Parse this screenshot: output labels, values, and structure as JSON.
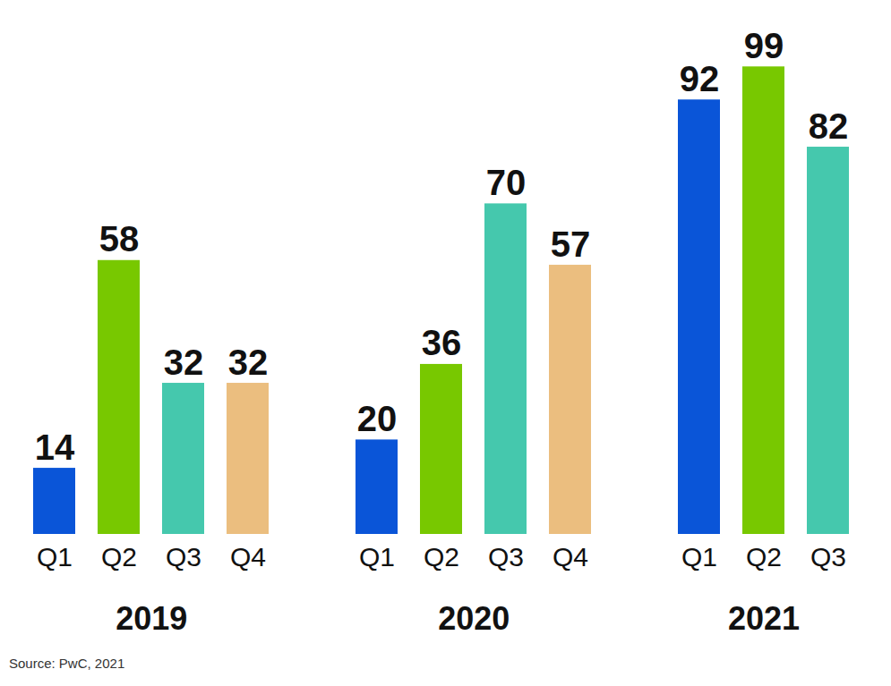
{
  "chart_data": {
    "type": "bar",
    "categories": [
      "2019",
      "2020",
      "2021"
    ],
    "series": [
      {
        "name": "Q1",
        "color": "#0a55d8",
        "values": [
          14,
          20,
          92
        ]
      },
      {
        "name": "Q2",
        "color": "#78c800",
        "values": [
          58,
          36,
          99
        ]
      },
      {
        "name": "Q3",
        "color": "#45c8ad",
        "values": [
          32,
          70,
          82
        ]
      },
      {
        "name": "Q4",
        "color": "#ebbe7f",
        "values": [
          32,
          57,
          null
        ]
      }
    ],
    "ylim": [
      0,
      100
    ],
    "data_labels": true,
    "tick_labels": "x",
    "grid": false,
    "caption": "Source: PwC, 2021"
  }
}
